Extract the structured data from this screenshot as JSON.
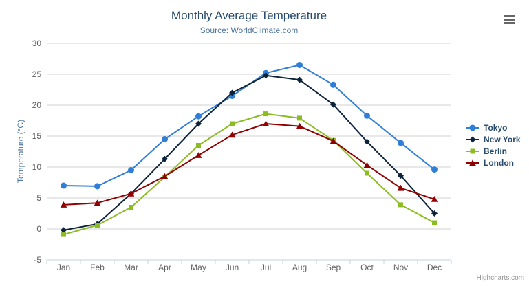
{
  "chart_data": {
    "type": "line",
    "title": "Monthly Average Temperature",
    "subtitle": "Source: WorldClimate.com",
    "xlabel": "",
    "ylabel": "Temperature (°C)",
    "categories": [
      "Jan",
      "Feb",
      "Mar",
      "Apr",
      "May",
      "Jun",
      "Jul",
      "Aug",
      "Sep",
      "Oct",
      "Nov",
      "Dec"
    ],
    "ylim": [
      -5,
      30
    ],
    "ytick_interval": 5,
    "grid": true,
    "legend_position": "right",
    "series": [
      {
        "name": "Tokyo",
        "color": "#2f7ed8",
        "marker": "circle",
        "values": [
          7.0,
          6.9,
          9.5,
          14.5,
          18.2,
          21.5,
          25.2,
          26.5,
          23.3,
          18.3,
          13.9,
          9.6
        ]
      },
      {
        "name": "New York",
        "color": "#0d233a",
        "marker": "diamond",
        "values": [
          -0.2,
          0.8,
          5.7,
          11.3,
          17.0,
          22.0,
          24.8,
          24.1,
          20.1,
          14.1,
          8.6,
          2.5
        ]
      },
      {
        "name": "Berlin",
        "color": "#8bbc21",
        "marker": "square",
        "values": [
          -0.9,
          0.6,
          3.5,
          8.4,
          13.5,
          17.0,
          18.6,
          17.9,
          14.3,
          9.0,
          3.9,
          1.0
        ]
      },
      {
        "name": "London",
        "color": "#910000",
        "marker": "triangle",
        "values": [
          3.9,
          4.2,
          5.7,
          8.5,
          11.9,
          15.2,
          17.0,
          16.6,
          14.2,
          10.3,
          6.6,
          4.8
        ]
      }
    ]
  },
  "credits": "Highcharts.com",
  "icons": {
    "context_menu": "hamburger-menu-icon"
  },
  "colors": {
    "title": "#274b6d",
    "subtitle": "#4d759e",
    "axis_title": "#4d759e",
    "axis_label": "#606060",
    "grid": "#d0d0d0",
    "axis_line": "#c0d0e0",
    "legend_text": "#274b6d",
    "credit": "#909090",
    "menu_icon": "#666666"
  }
}
